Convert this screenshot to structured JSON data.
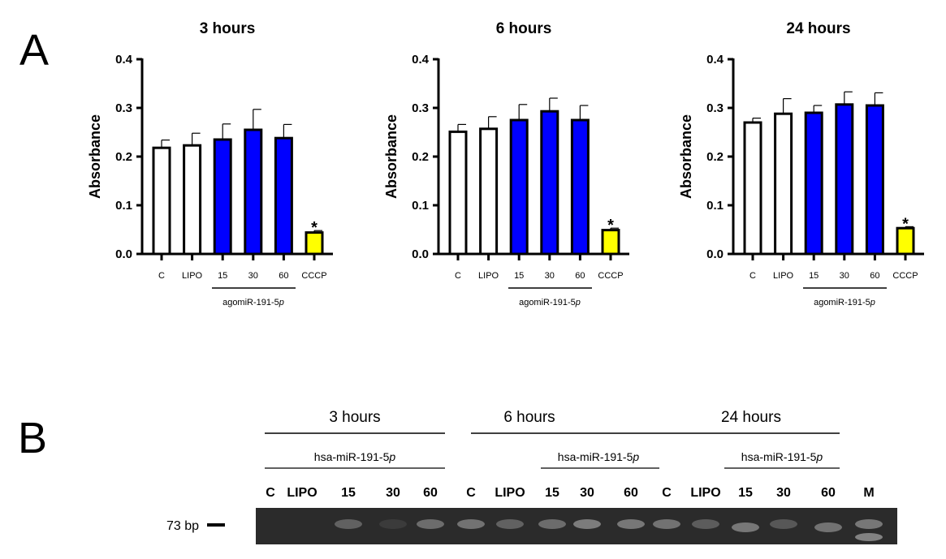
{
  "panels": {
    "a": "A",
    "b": "B"
  },
  "chart_data": [
    {
      "type": "bar",
      "title": "3 hours",
      "ylabel": "Absorbance",
      "ylim": [
        0,
        0.4
      ],
      "yticks": [
        "0.0",
        "0.1",
        "0.2",
        "0.3",
        "0.4"
      ],
      "categories": [
        "C",
        "LIPO",
        "15",
        "30",
        "60",
        "CCCP"
      ],
      "group_label": "agomiR-191-5p",
      "values": [
        0.218,
        0.223,
        0.235,
        0.255,
        0.238,
        0.044
      ],
      "errors": [
        0.016,
        0.025,
        0.032,
        0.042,
        0.028,
        0.004
      ],
      "colors": [
        "#ffffff",
        "#ffffff",
        "#0000ff",
        "#0000ff",
        "#0000ff",
        "#ffff00"
      ],
      "annotation": "*"
    },
    {
      "type": "bar",
      "title": "6 hours",
      "ylabel": "Absorbance",
      "ylim": [
        0,
        0.4
      ],
      "yticks": [
        "0.0",
        "0.1",
        "0.2",
        "0.3",
        "0.4"
      ],
      "categories": [
        "C",
        "LIPO",
        "15",
        "30",
        "60",
        "CCCP"
      ],
      "group_label": "agomiR-191-5p",
      "values": [
        0.251,
        0.257,
        0.275,
        0.293,
        0.275,
        0.049
      ],
      "errors": [
        0.015,
        0.025,
        0.032,
        0.027,
        0.03,
        0.004
      ],
      "colors": [
        "#ffffff",
        "#ffffff",
        "#0000ff",
        "#0000ff",
        "#0000ff",
        "#ffff00"
      ],
      "annotation": "*"
    },
    {
      "type": "bar",
      "title": "24 hours",
      "ylabel": "Absorbance",
      "ylim": [
        0,
        0.4
      ],
      "yticks": [
        "0.0",
        "0.1",
        "0.2",
        "0.3",
        "0.4"
      ],
      "categories": [
        "C",
        "LIPO",
        "15",
        "30",
        "60",
        "CCCP"
      ],
      "group_label": "agomiR-191-5p",
      "values": [
        0.27,
        0.288,
        0.29,
        0.307,
        0.305,
        0.053
      ],
      "errors": [
        0.009,
        0.031,
        0.015,
        0.026,
        0.026,
        0.003
      ],
      "colors": [
        "#ffffff",
        "#ffffff",
        "#0000ff",
        "#0000ff",
        "#0000ff",
        "#ffff00"
      ],
      "annotation": "*"
    }
  ],
  "gel": {
    "groups": [
      {
        "label": "3 hours",
        "sub": "hsa-miR-191-5p"
      },
      {
        "label": "6 hours",
        "sub": "hsa-miR-191-5p"
      },
      {
        "label": "24 hours",
        "sub": "hsa-miR-191-5p"
      }
    ],
    "lanes": [
      "C",
      "LIPO",
      "15",
      "30",
      "60",
      "C",
      "LIPO",
      "15",
      "30",
      "60",
      "C",
      "LIPO",
      "15",
      "30",
      "60",
      "M"
    ],
    "band_intensity": [
      0,
      0,
      0.5,
      0.15,
      0.6,
      0.65,
      0.5,
      0.6,
      0.75,
      0.7,
      0.65,
      0.45,
      0.7,
      0.4,
      0.65,
      0.7
    ],
    "marker_label": "73 bp"
  }
}
